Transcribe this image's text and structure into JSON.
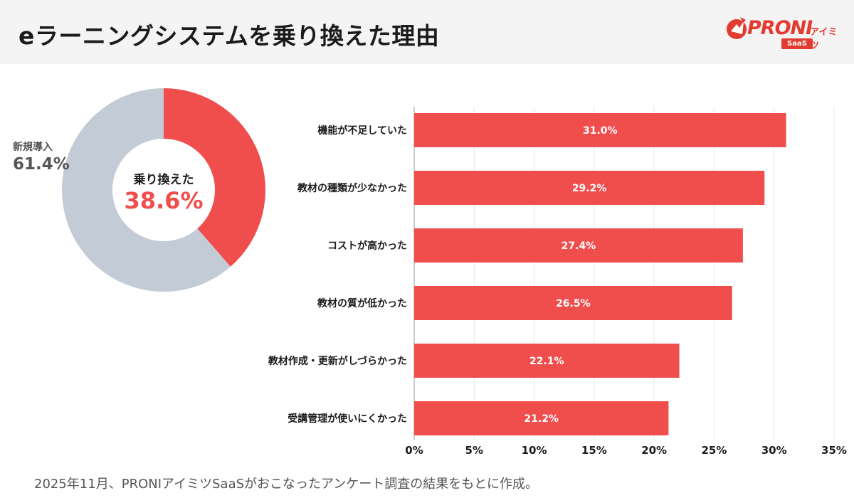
{
  "title": "eラーニングシステムを乗り換えた理由",
  "logo": {
    "word": "PRONI",
    "sub": "アイミツ",
    "badge": "SaaS",
    "color": "#e23b32"
  },
  "donut": {
    "slices": [
      {
        "label": "乗り換えた",
        "value_text": "38.6%",
        "value": 38.6,
        "color": "#f04d4d"
      },
      {
        "label": "新規導入",
        "value_text": "61.4%",
        "value": 61.4,
        "color": "#c3ccd6"
      }
    ]
  },
  "chart_data": [
    {
      "type": "pie",
      "categories": [
        "乗り換えた",
        "新規導入"
      ],
      "values": [
        38.6,
        61.4
      ],
      "title": "",
      "colors": [
        "#f04d4d",
        "#c3ccd6"
      ]
    },
    {
      "type": "bar",
      "orientation": "horizontal",
      "categories": [
        "機能が不足していた",
        "教材の種類が少なかった",
        "コストが高かった",
        "教材の質が低かった",
        "教材作成・更新がしづらかった",
        "受講管理が使いにくかった"
      ],
      "values": [
        31.0,
        29.2,
        27.4,
        26.5,
        22.1,
        21.2
      ],
      "value_labels": [
        "31.0%",
        "29.2%",
        "27.4%",
        "26.5%",
        "22.1%",
        "21.2%"
      ],
      "xlim": [
        0,
        35
      ],
      "xticks": [
        "0%",
        "5%",
        "10%",
        "15%",
        "20%",
        "25%",
        "30%",
        "35%"
      ],
      "grid": true,
      "bar_color": "#f04d4d",
      "title": "",
      "xlabel": "",
      "ylabel": ""
    }
  ],
  "footnote": "2025年11月、PRONIアイミツSaaSがおこなったアンケート調査の結果をもとに作成。"
}
